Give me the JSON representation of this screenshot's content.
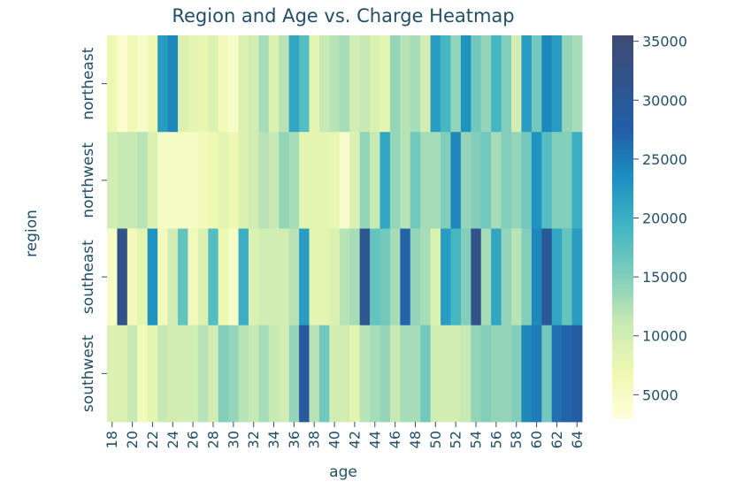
{
  "chart_data": {
    "type": "heatmap",
    "title": "Region and Age vs. Charge Heatmap",
    "xlabel": "age",
    "ylabel": "region",
    "x": [
      18,
      19,
      20,
      21,
      22,
      23,
      24,
      25,
      26,
      27,
      28,
      29,
      30,
      31,
      32,
      33,
      34,
      35,
      36,
      37,
      38,
      39,
      40,
      41,
      42,
      43,
      44,
      45,
      46,
      47,
      48,
      49,
      50,
      51,
      52,
      53,
      54,
      55,
      56,
      57,
      58,
      59,
      60,
      61,
      62,
      63,
      64
    ],
    "x_tick_labels": [
      "18",
      "20",
      "22",
      "24",
      "26",
      "28",
      "30",
      "32",
      "34",
      "36",
      "38",
      "40",
      "42",
      "44",
      "46",
      "48",
      "50",
      "52",
      "54",
      "56",
      "58",
      "60",
      "62",
      "64"
    ],
    "y": [
      "northeast",
      "northwest",
      "southeast",
      "southwest"
    ],
    "values": [
      [
        7000,
        4000,
        6500,
        5000,
        7000,
        22000,
        24000,
        9000,
        8000,
        7500,
        9000,
        6000,
        5000,
        9000,
        10000,
        13000,
        9000,
        12000,
        21000,
        18000,
        8000,
        11000,
        12000,
        13000,
        10000,
        11000,
        9000,
        8000,
        14000,
        12000,
        13000,
        10000,
        22000,
        19000,
        14000,
        23000,
        16000,
        14000,
        19000,
        15000,
        10000,
        22000,
        16000,
        24000,
        22000,
        14000,
        13000
      ],
      [
        10000,
        11000,
        11000,
        12000,
        9000,
        5000,
        5000,
        5000,
        5000,
        6000,
        7000,
        8000,
        7000,
        9000,
        10000,
        12000,
        11000,
        14000,
        13000,
        8000,
        8000,
        8000,
        7500,
        4500,
        9000,
        14000,
        11000,
        21000,
        14000,
        12000,
        16000,
        13000,
        13000,
        15000,
        24000,
        14000,
        15000,
        16000,
        13000,
        15000,
        14000,
        16000,
        23000,
        18000,
        15000,
        15000,
        20000
      ],
      [
        5000,
        32000,
        6000,
        8000,
        23000,
        6000,
        10000,
        17000,
        6000,
        9000,
        18000,
        7000,
        5000,
        20000,
        9000,
        10000,
        10000,
        10000,
        12000,
        22000,
        8000,
        8000,
        9000,
        12000,
        13000,
        31000,
        17000,
        16000,
        13000,
        27000,
        14000,
        13000,
        9000,
        22000,
        19000,
        15000,
        32000,
        13000,
        21000,
        14000,
        12000,
        15000,
        24000,
        30000,
        21000,
        17000,
        22000
      ],
      [
        9000,
        9000,
        11000,
        6000,
        8000,
        11000,
        10000,
        10000,
        10000,
        12000,
        10000,
        15000,
        14000,
        12000,
        11000,
        13000,
        11000,
        10000,
        14000,
        29000,
        12000,
        16000,
        10000,
        10000,
        8000,
        12000,
        13000,
        14000,
        11000,
        13000,
        13000,
        16000,
        10000,
        10000,
        10000,
        11000,
        14000,
        15000,
        14000,
        14000,
        15000,
        24000,
        25000,
        16000,
        26000,
        27000,
        28000
      ]
    ],
    "colorbar": {
      "ticks": [
        5000,
        10000,
        15000,
        20000,
        25000,
        30000,
        35000
      ],
      "range": [
        3000,
        35500
      ],
      "colormap": "YlGnBu"
    }
  }
}
